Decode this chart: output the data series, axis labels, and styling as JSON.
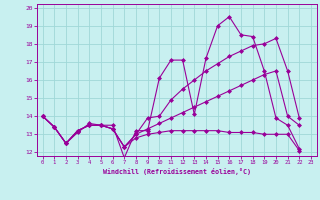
{
  "title": "",
  "xlabel": "Windchill (Refroidissement éolien,°C)",
  "bg_color": "#c8f0f0",
  "grid_color": "#a0d8d8",
  "line_color": "#990099",
  "xlim": [
    -0.5,
    23.5
  ],
  "ylim": [
    11.8,
    20.2
  ],
  "xticks": [
    0,
    1,
    2,
    3,
    4,
    5,
    6,
    7,
    8,
    9,
    10,
    11,
    12,
    13,
    14,
    15,
    16,
    17,
    18,
    19,
    20,
    21,
    22,
    23
  ],
  "yticks": [
    12,
    13,
    14,
    15,
    16,
    17,
    18,
    19,
    20
  ],
  "series": [
    [
      14.0,
      13.4,
      12.5,
      13.1,
      13.6,
      13.5,
      13.5,
      11.7,
      13.2,
      13.2,
      16.1,
      17.1,
      17.1,
      14.1,
      17.2,
      19.0,
      19.5,
      18.5,
      18.4,
      16.5,
      13.9,
      13.5,
      12.2
    ],
    [
      14.0,
      13.4,
      12.5,
      13.2,
      13.5,
      13.5,
      13.3,
      12.3,
      13.0,
      13.9,
      14.0,
      14.9,
      15.5,
      16.0,
      16.5,
      16.9,
      17.3,
      17.6,
      17.9,
      18.0,
      18.3,
      16.5,
      13.9
    ],
    [
      14.0,
      13.4,
      12.5,
      13.2,
      13.5,
      13.5,
      13.3,
      12.3,
      13.0,
      13.3,
      13.6,
      13.9,
      14.2,
      14.5,
      14.8,
      15.1,
      15.4,
      15.7,
      16.0,
      16.3,
      16.5,
      14.0,
      13.5
    ],
    [
      14.0,
      13.4,
      12.5,
      13.2,
      13.5,
      13.5,
      13.3,
      12.3,
      12.8,
      13.0,
      13.1,
      13.2,
      13.2,
      13.2,
      13.2,
      13.2,
      13.1,
      13.1,
      13.1,
      13.0,
      13.0,
      13.0,
      12.1
    ]
  ]
}
